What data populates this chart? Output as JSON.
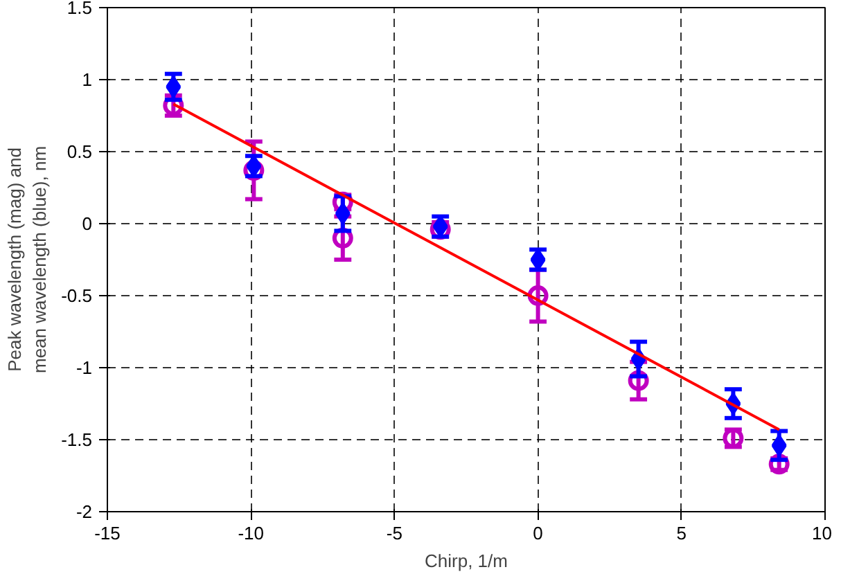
{
  "chart_data": {
    "type": "scatter",
    "xlabel": "Chirp, 1/m",
    "ylabel": "Peak wavelength (mag) and\nmean wavelength (blue), nm",
    "xlim": [
      -15,
      10
    ],
    "ylim": [
      -2,
      1.5
    ],
    "xticks": [
      -15,
      -10,
      -5,
      0,
      5,
      10
    ],
    "yticks": [
      -2,
      -1.5,
      -1,
      -0.5,
      0,
      0.5,
      1,
      1.5
    ],
    "grid": true,
    "series": [
      {
        "color": "#c000c0",
        "marker": "circle",
        "x": [
          -12.7,
          -9.9,
          -6.8,
          -6.8,
          -3.4,
          0,
          3.5,
          6.8,
          8.4
        ],
        "values": [
          0.82,
          0.37,
          0.15,
          -0.1,
          -0.04,
          -0.5,
          -1.09,
          -1.49,
          -1.67
        ],
        "errors": [
          0.07,
          0.2,
          0.05,
          0.15,
          0.05,
          0.18,
          0.13,
          0.06,
          0.04
        ]
      },
      {
        "color": "#0000ff",
        "marker": "diamond",
        "x": [
          -12.7,
          -9.9,
          -6.8,
          -3.4,
          0,
          3.5,
          6.8,
          8.4
        ],
        "values": [
          0.95,
          0.4,
          0.07,
          -0.02,
          -0.25,
          -0.94,
          -1.25,
          -1.54
        ],
        "errors": [
          0.09,
          0.07,
          0.12,
          0.07,
          0.07,
          0.12,
          0.1,
          0.1
        ]
      },
      {
        "type": "line",
        "color": "#ff0000",
        "x": [
          -12.7,
          8.4
        ],
        "values": [
          0.83,
          -1.43
        ]
      }
    ]
  }
}
